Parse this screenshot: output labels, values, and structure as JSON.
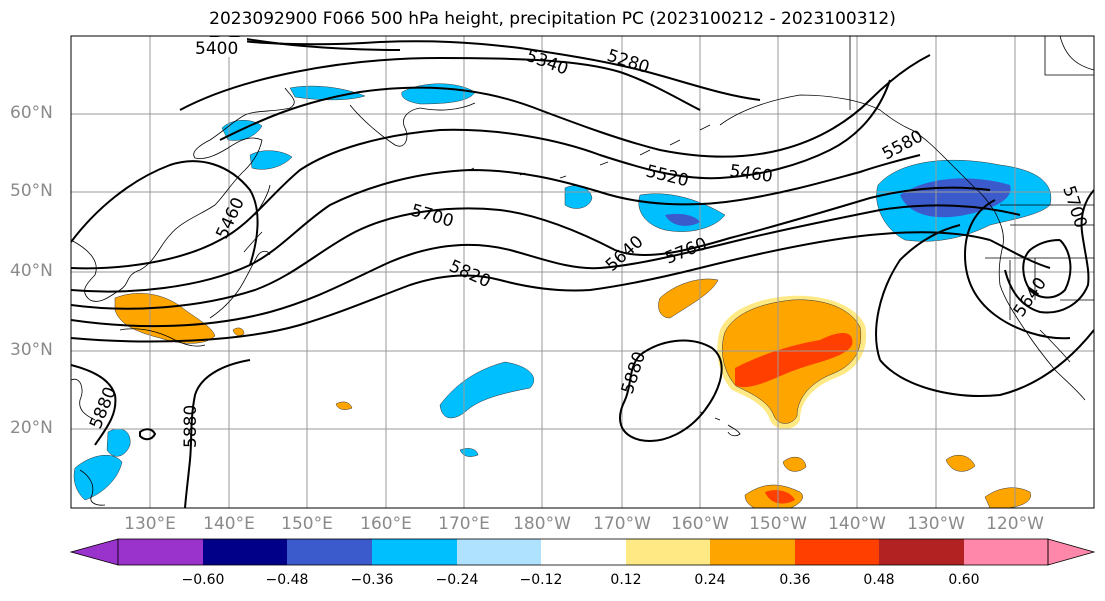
{
  "title": "2023092900 F066 500 hPa height, precipitation PC (2023100212 - 2023100312)",
  "map": {
    "lat_labels": [
      "60°N",
      "50°N",
      "40°N",
      "30°N",
      "20°N"
    ],
    "lon_labels": [
      "130°E",
      "140°E",
      "150°E",
      "160°E",
      "170°E",
      "180°W",
      "170°W",
      "160°W",
      "150°W",
      "140°W",
      "130°W",
      "120°W"
    ],
    "contour_labels": [
      "5400",
      "5340",
      "5280",
      "5460",
      "5520",
      "5580",
      "5460",
      "5700",
      "5640",
      "5760",
      "5820",
      "5880",
      "5880",
      "5880",
      "5640",
      "5700"
    ],
    "colors": {
      "land_line": "#000000",
      "grid": "#999999",
      "contour": "#000000"
    }
  },
  "colorbar": {
    "ticks": [
      "−0.60",
      "−0.48",
      "−0.36",
      "−0.24",
      "−0.12",
      "0.12",
      "0.24",
      "0.36",
      "0.48",
      "0.60"
    ],
    "colors": [
      "#9933cc",
      "#000088",
      "#3b5bcc",
      "#00bfff",
      "#aee2ff",
      "#ffffff",
      "#ffe985",
      "#ffa500",
      "#ff3f00",
      "#b22222",
      "#ff88aa"
    ]
  }
}
